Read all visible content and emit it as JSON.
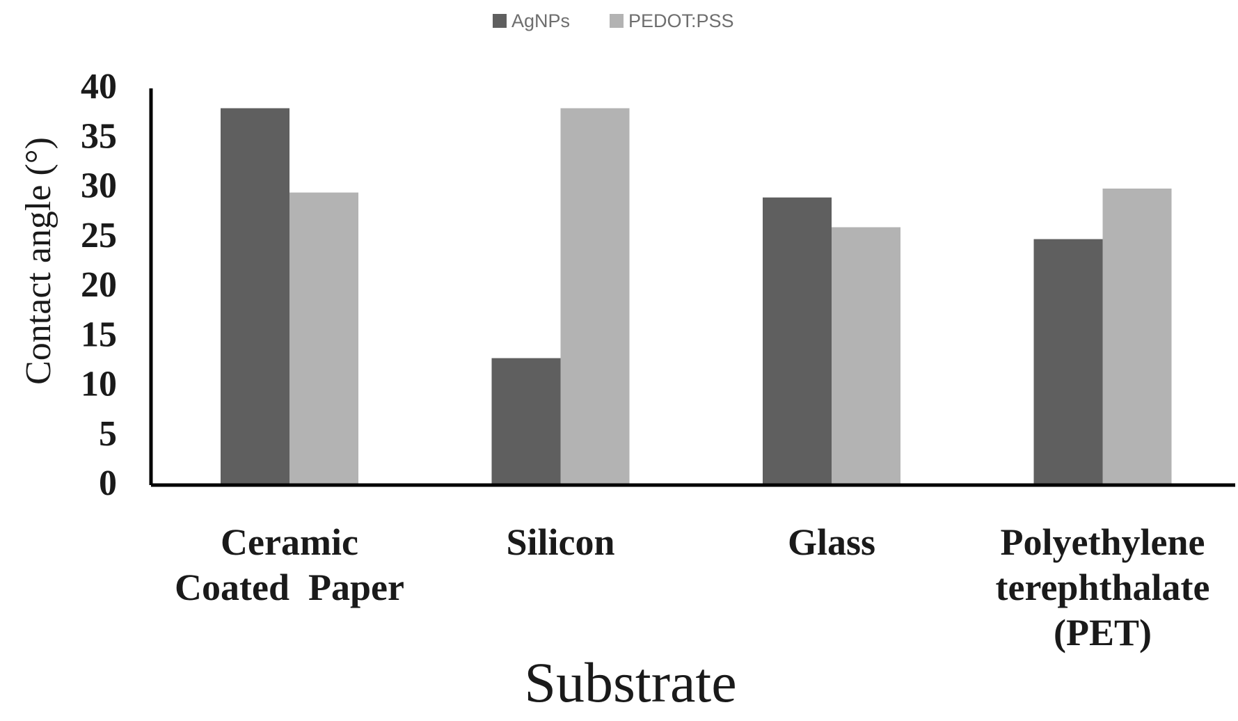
{
  "chart_data": {
    "type": "bar",
    "title": "",
    "xlabel": "Substrate",
    "ylabel": "Contact angle (°)",
    "ylim": [
      0,
      40
    ],
    "yticks": [
      0,
      5,
      10,
      15,
      20,
      25,
      30,
      35,
      40
    ],
    "grid": false,
    "legend_position": "top-center",
    "categories": [
      [
        "Ceramic",
        "Coated  Paper"
      ],
      [
        "Silicon"
      ],
      [
        "Glass"
      ],
      [
        "Polyethylene",
        "terephthalate",
        "(PET)"
      ]
    ],
    "series": [
      {
        "name": "AgNPs",
        "color": "#5f5f5f",
        "values": [
          38,
          12.8,
          29,
          24.8
        ]
      },
      {
        "name": "PEDOT:PSS",
        "color": "#b3b3b3",
        "values": [
          29.5,
          38,
          26,
          29.9
        ]
      }
    ]
  }
}
